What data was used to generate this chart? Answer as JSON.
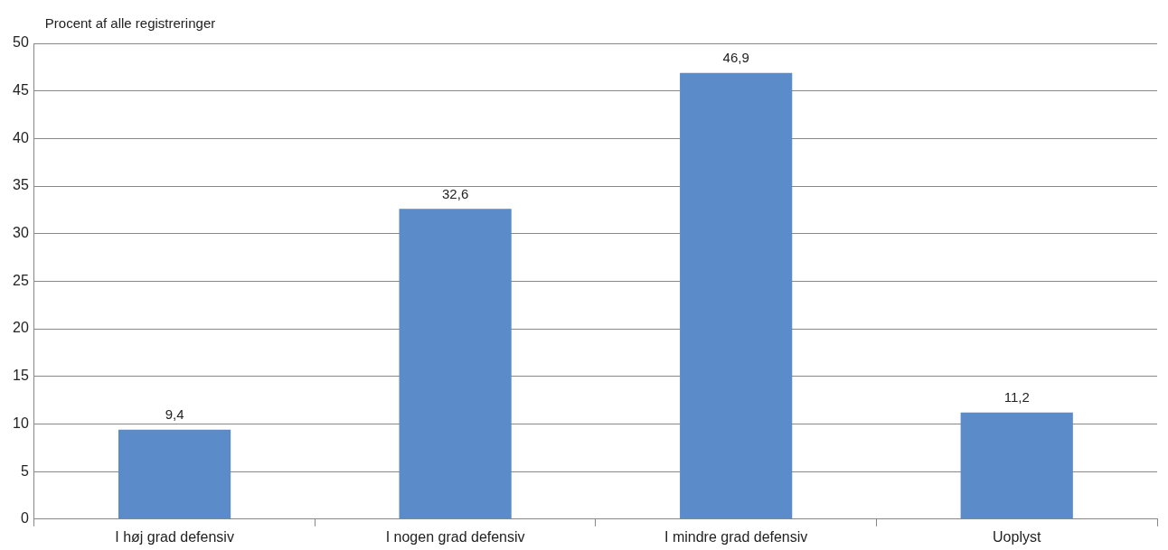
{
  "chart_data": {
    "type": "bar",
    "ylabel": "Procent af alle registreringer",
    "categories": [
      "I høj grad defensiv",
      "I nogen grad defensiv",
      "I mindre grad defensiv",
      "Uoplyst"
    ],
    "values": [
      9.4,
      32.6,
      46.9,
      11.2
    ],
    "value_labels": [
      "9,4",
      "32,6",
      "46,9",
      "11,2"
    ],
    "color": "#5b8bc9",
    "ylim": [
      0,
      50
    ],
    "yticks": [
      0,
      5,
      10,
      15,
      20,
      25,
      30,
      35,
      40,
      45,
      50
    ],
    "grid": "y",
    "legend": false
  }
}
